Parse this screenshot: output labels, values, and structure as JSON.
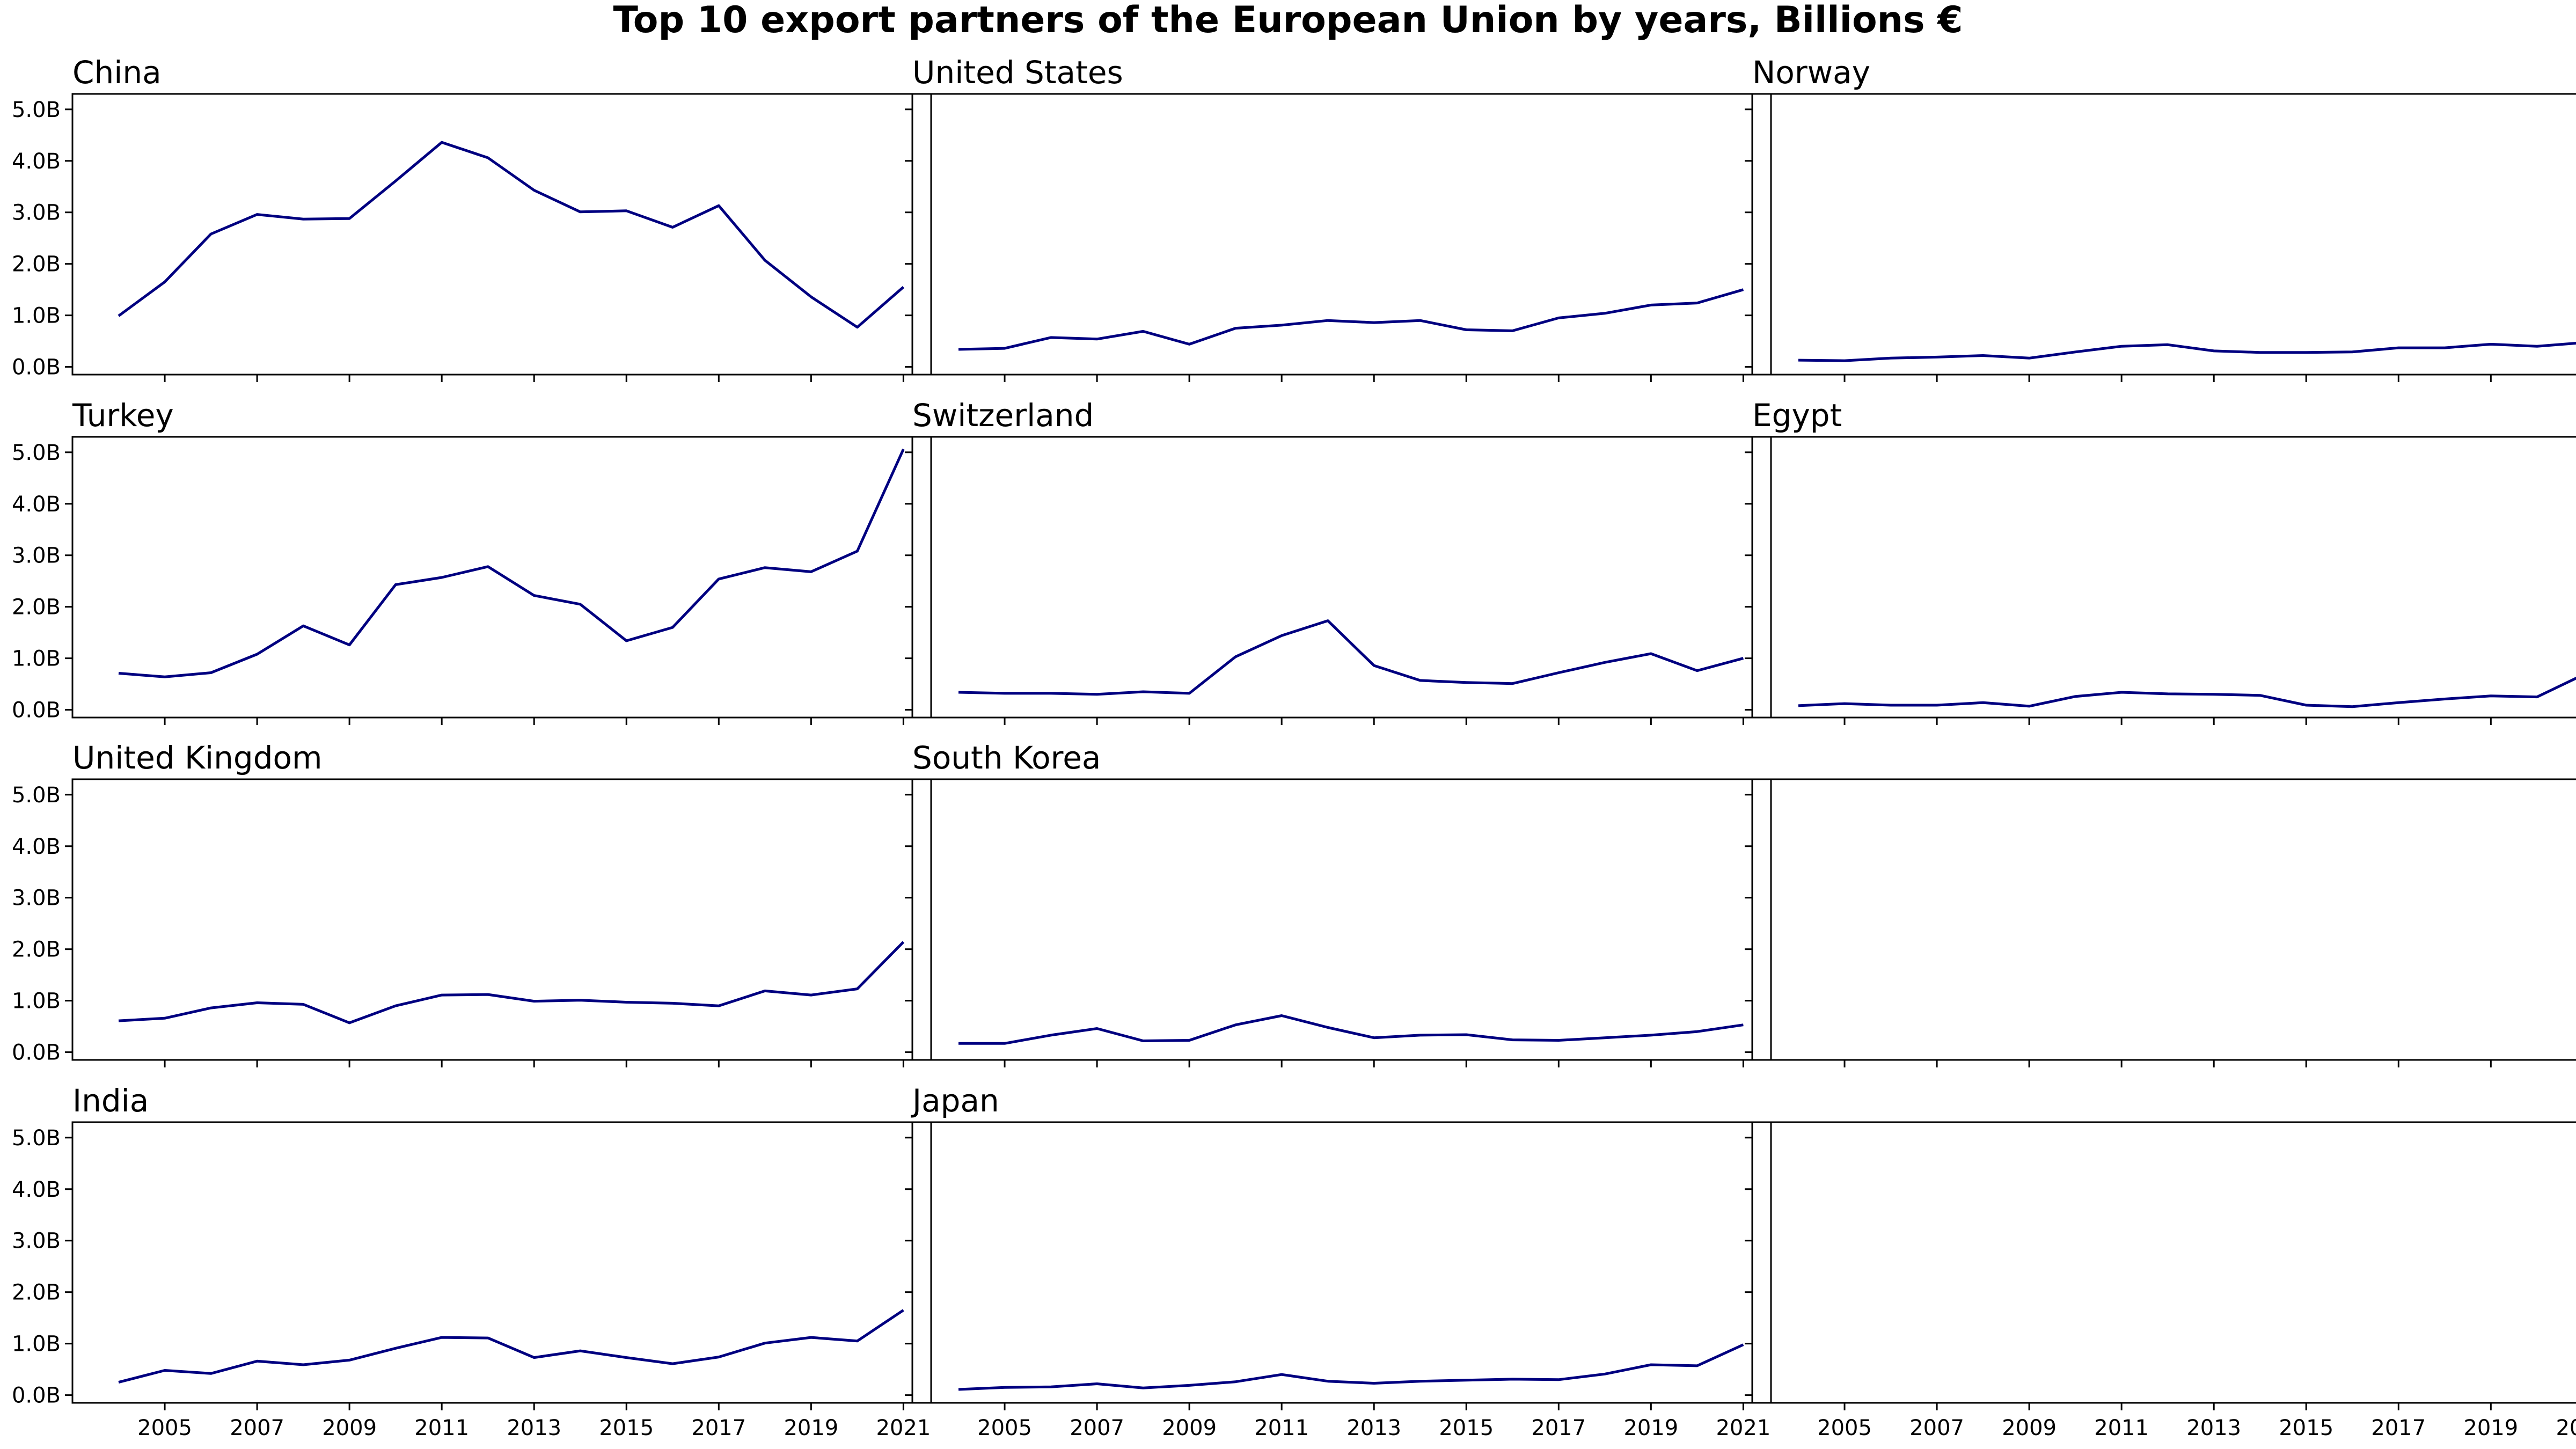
{
  "chart_data": {
    "type": "line",
    "title": "Top 10 export partners of the European Union by years, Billions €",
    "x": [
      2004,
      2005,
      2006,
      2007,
      2008,
      2009,
      2010,
      2011,
      2012,
      2013,
      2014,
      2015,
      2016,
      2017,
      2018,
      2019,
      2020,
      2021
    ],
    "xticks": [
      "2005",
      "2007",
      "2009",
      "2011",
      "2013",
      "2015",
      "2017",
      "2019",
      "2021"
    ],
    "xlim": [
      2003.0,
      2021.6
    ],
    "yticks": [
      "0.0B",
      "1.0B",
      "2.0B",
      "3.0B",
      "4.0B",
      "5.0B"
    ],
    "ylim": [
      -0.15,
      5.3
    ],
    "grid": false,
    "line_color": "#000080",
    "panels": [
      {
        "title": "China",
        "values": [
          0.99,
          1.65,
          2.58,
          2.96,
          2.87,
          2.88,
          3.61,
          4.36,
          4.06,
          3.43,
          3.01,
          3.03,
          2.71,
          3.13,
          2.07,
          1.36,
          0.77,
          1.55
        ]
      },
      {
        "title": "United States",
        "values": [
          0.34,
          0.36,
          0.57,
          0.54,
          0.69,
          0.44,
          0.75,
          0.81,
          0.9,
          0.86,
          0.9,
          0.72,
          0.7,
          0.95,
          1.04,
          1.2,
          1.24,
          1.5
        ]
      },
      {
        "title": "Norway",
        "values": [
          0.13,
          0.12,
          0.17,
          0.19,
          0.22,
          0.17,
          0.29,
          0.4,
          0.43,
          0.31,
          0.28,
          0.28,
          0.29,
          0.37,
          0.37,
          0.44,
          0.4,
          0.47
        ]
      },
      {
        "title": "Turkey",
        "values": [
          0.71,
          0.64,
          0.72,
          1.08,
          1.63,
          1.26,
          2.43,
          2.57,
          2.78,
          2.22,
          2.05,
          1.34,
          1.6,
          2.54,
          2.76,
          2.68,
          3.08,
          5.06
        ]
      },
      {
        "title": "Switzerland",
        "values": [
          0.34,
          0.32,
          0.32,
          0.3,
          0.35,
          0.32,
          1.03,
          1.44,
          1.73,
          0.86,
          0.57,
          0.53,
          0.51,
          0.72,
          0.92,
          1.09,
          0.76,
          1.0
        ]
      },
      {
        "title": "Egypt",
        "values": [
          0.08,
          0.12,
          0.09,
          0.09,
          0.14,
          0.07,
          0.26,
          0.34,
          0.31,
          0.3,
          0.28,
          0.09,
          0.06,
          0.14,
          0.21,
          0.27,
          0.25,
          0.68
        ]
      },
      {
        "title": "United Kingdom",
        "values": [
          0.61,
          0.66,
          0.86,
          0.96,
          0.93,
          0.57,
          0.9,
          1.11,
          1.12,
          0.99,
          1.01,
          0.97,
          0.95,
          0.9,
          1.19,
          1.11,
          1.23,
          2.14
        ]
      },
      {
        "title": "South Korea",
        "values": [
          0.17,
          0.17,
          0.33,
          0.46,
          0.22,
          0.23,
          0.53,
          0.71,
          0.48,
          0.28,
          0.33,
          0.34,
          0.24,
          0.23,
          0.28,
          0.33,
          0.4,
          0.53
        ]
      },
      {
        "title": "",
        "values": []
      },
      {
        "title": "India",
        "values": [
          0.25,
          0.48,
          0.42,
          0.66,
          0.59,
          0.68,
          0.91,
          1.12,
          1.11,
          0.73,
          0.86,
          0.73,
          0.61,
          0.74,
          1.01,
          1.12,
          1.05,
          1.65
        ]
      },
      {
        "title": "Japan",
        "values": [
          0.11,
          0.15,
          0.16,
          0.22,
          0.14,
          0.19,
          0.26,
          0.4,
          0.27,
          0.23,
          0.27,
          0.29,
          0.31,
          0.3,
          0.41,
          0.59,
          0.57,
          0.98
        ]
      },
      {
        "title": "",
        "values": []
      }
    ]
  }
}
